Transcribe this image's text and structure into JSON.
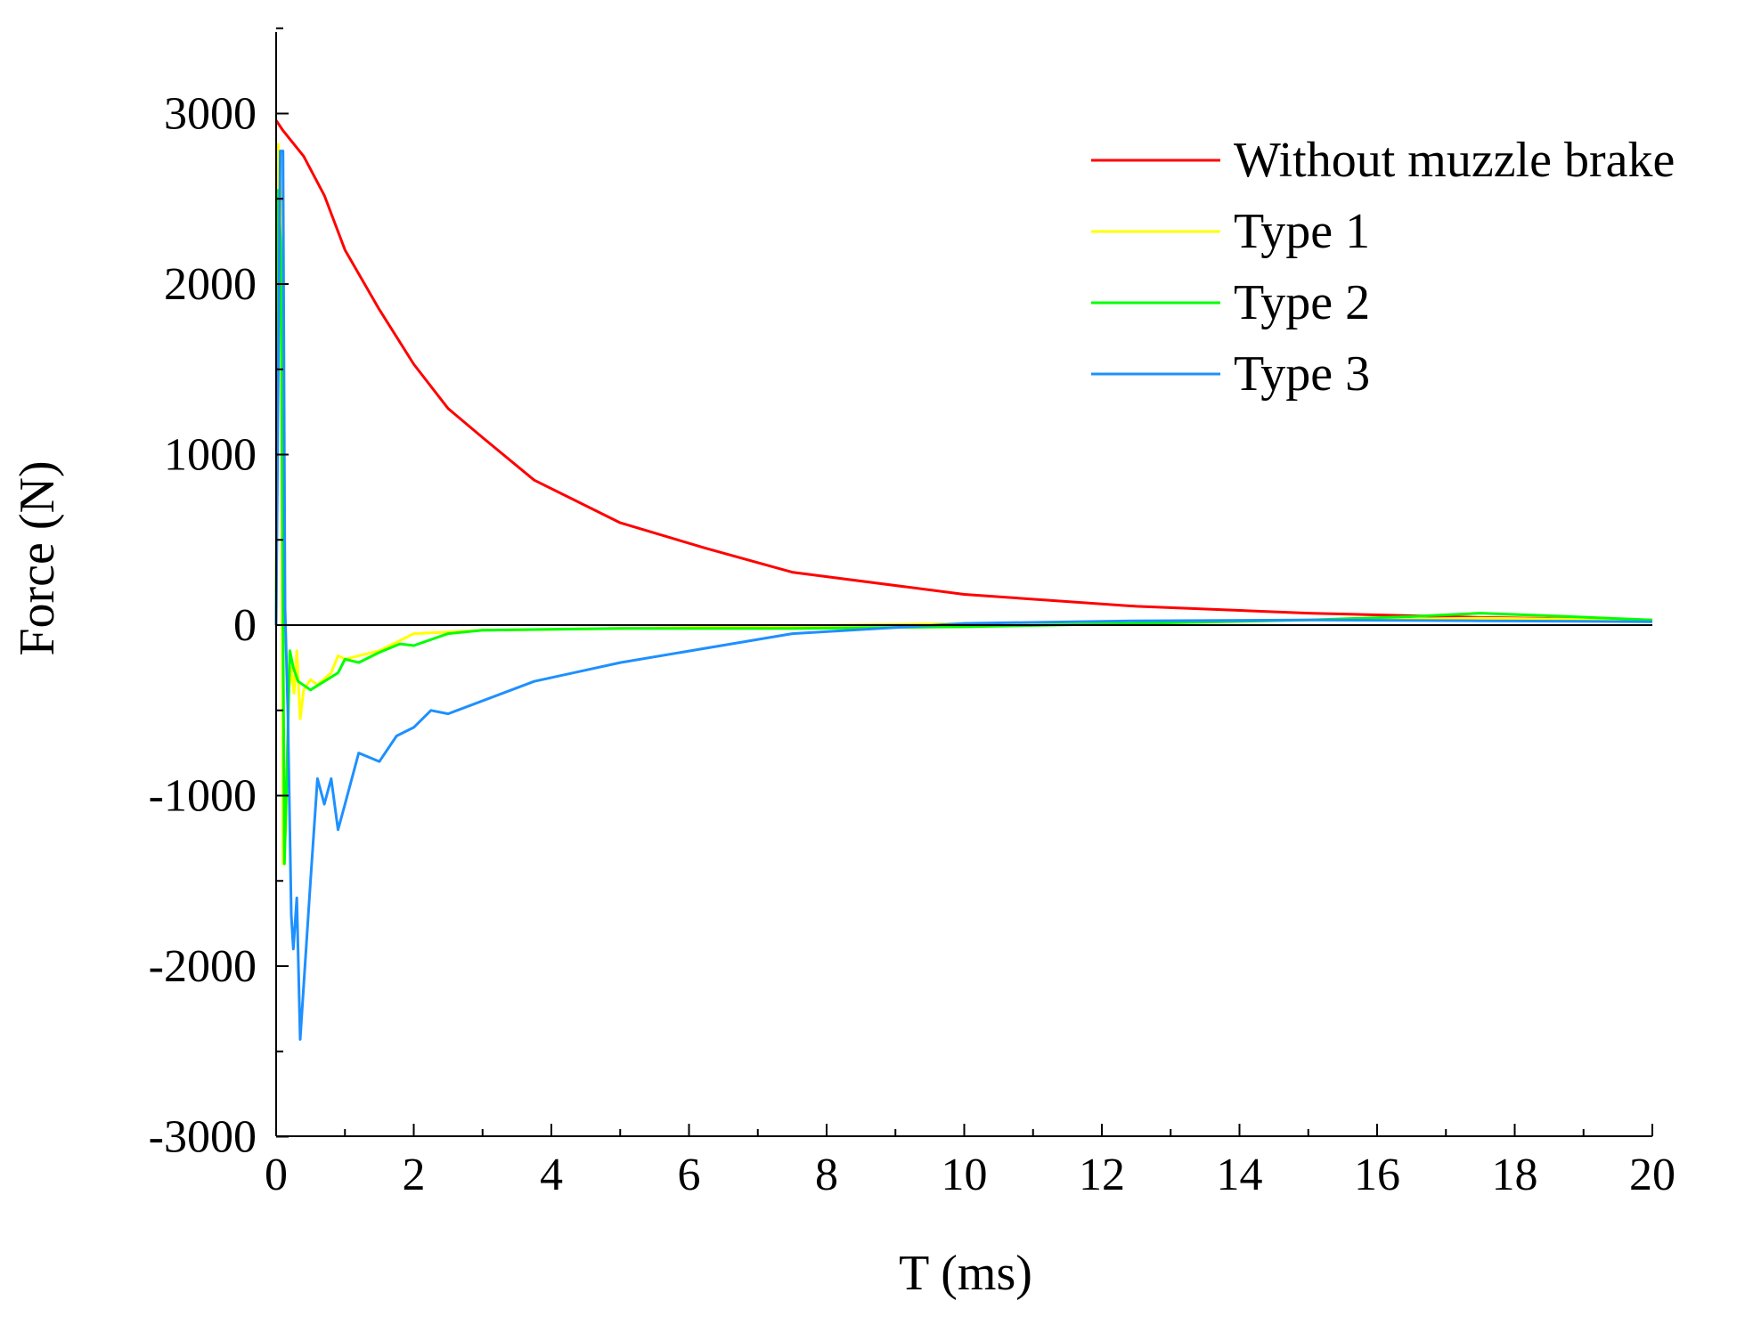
{
  "chart_data": {
    "type": "line",
    "title": "",
    "xlabel": "T (ms)",
    "ylabel": "Force (N)",
    "xlim": [
      0,
      20
    ],
    "ylim": [
      -3000,
      3500
    ],
    "x_ticks": [
      0,
      2,
      4,
      6,
      8,
      10,
      12,
      14,
      16,
      18,
      20
    ],
    "y_ticks": [
      -3000,
      -2000,
      -1000,
      0,
      1000,
      2000,
      3000
    ],
    "zero_line": true,
    "grid": false,
    "legend_position": "top-right",
    "series": [
      {
        "name": "Without muzzle brake",
        "color": "#ff0000",
        "points": [
          [
            0.0,
            2960
          ],
          [
            0.1,
            2900
          ],
          [
            0.4,
            2750
          ],
          [
            0.7,
            2520
          ],
          [
            1.0,
            2200
          ],
          [
            1.5,
            1850
          ],
          [
            2.0,
            1530
          ],
          [
            2.5,
            1270
          ],
          [
            3.0,
            1100
          ],
          [
            3.75,
            850
          ],
          [
            5.0,
            600
          ],
          [
            6.25,
            450
          ],
          [
            7.5,
            310
          ],
          [
            10.0,
            180
          ],
          [
            12.5,
            110
          ],
          [
            15.0,
            70
          ],
          [
            17.5,
            45
          ],
          [
            20.0,
            30
          ]
        ]
      },
      {
        "name": "Type 1",
        "color": "#ffff00",
        "points": [
          [
            0.0,
            0
          ],
          [
            0.03,
            2820
          ],
          [
            0.07,
            2500
          ],
          [
            0.1,
            -1400
          ],
          [
            0.14,
            -1200
          ],
          [
            0.18,
            -400
          ],
          [
            0.22,
            -250
          ],
          [
            0.26,
            -400
          ],
          [
            0.3,
            -150
          ],
          [
            0.35,
            -550
          ],
          [
            0.4,
            -380
          ],
          [
            0.5,
            -320
          ],
          [
            0.6,
            -350
          ],
          [
            0.8,
            -280
          ],
          [
            0.9,
            -180
          ],
          [
            1.0,
            -200
          ],
          [
            1.5,
            -150
          ],
          [
            2.0,
            -50
          ],
          [
            2.5,
            -40
          ],
          [
            3.0,
            -30
          ],
          [
            5.0,
            -20
          ],
          [
            7.5,
            -5
          ],
          [
            10.0,
            10
          ],
          [
            12.5,
            20
          ],
          [
            15.0,
            30
          ],
          [
            17.5,
            40
          ],
          [
            20.0,
            30
          ]
        ]
      },
      {
        "name": "Type 2",
        "color": "#00ff00",
        "points": [
          [
            0.0,
            0
          ],
          [
            0.03,
            2550
          ],
          [
            0.07,
            2200
          ],
          [
            0.12,
            -1400
          ],
          [
            0.16,
            -800
          ],
          [
            0.2,
            -150
          ],
          [
            0.25,
            -250
          ],
          [
            0.32,
            -330
          ],
          [
            0.5,
            -380
          ],
          [
            0.7,
            -330
          ],
          [
            0.9,
            -280
          ],
          [
            1.0,
            -200
          ],
          [
            1.2,
            -220
          ],
          [
            1.5,
            -160
          ],
          [
            1.8,
            -110
          ],
          [
            2.0,
            -120
          ],
          [
            2.5,
            -50
          ],
          [
            3.0,
            -30
          ],
          [
            5.0,
            -20
          ],
          [
            7.5,
            -20
          ],
          [
            10.0,
            -10
          ],
          [
            12.5,
            10
          ],
          [
            15.0,
            30
          ],
          [
            16.5,
            50
          ],
          [
            17.5,
            70
          ],
          [
            18.5,
            55
          ],
          [
            20.0,
            30
          ]
        ]
      },
      {
        "name": "Type 3",
        "color": "#1e90ff",
        "points": [
          [
            0.0,
            0
          ],
          [
            0.06,
            2780
          ],
          [
            0.1,
            2780
          ],
          [
            0.13,
            100
          ],
          [
            0.17,
            -500
          ],
          [
            0.22,
            -1700
          ],
          [
            0.25,
            -1900
          ],
          [
            0.3,
            -1600
          ],
          [
            0.35,
            -2430
          ],
          [
            0.5,
            -1500
          ],
          [
            0.6,
            -900
          ],
          [
            0.7,
            -1050
          ],
          [
            0.8,
            -900
          ],
          [
            0.9,
            -1200
          ],
          [
            1.0,
            -1050
          ],
          [
            1.2,
            -750
          ],
          [
            1.5,
            -800
          ],
          [
            1.75,
            -650
          ],
          [
            2.0,
            -600
          ],
          [
            2.25,
            -500
          ],
          [
            2.5,
            -520
          ],
          [
            3.75,
            -330
          ],
          [
            5.0,
            -220
          ],
          [
            7.5,
            -50
          ],
          [
            10.0,
            10
          ],
          [
            12.5,
            25
          ],
          [
            15.0,
            30
          ],
          [
            17.5,
            25
          ],
          [
            20.0,
            20
          ]
        ]
      }
    ]
  }
}
